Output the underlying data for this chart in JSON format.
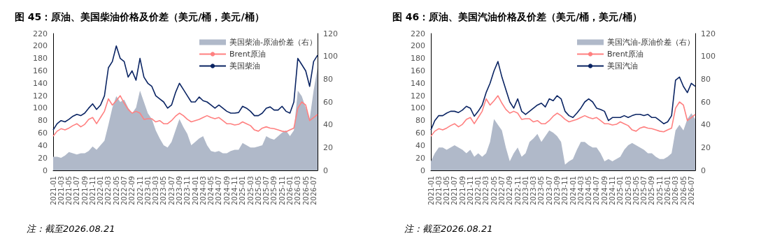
{
  "chart_data": [
    {
      "type": "line",
      "title": "图 45：原油、美国柴油价格及价差（美元/桶，美元/桶）",
      "annotations": [
        "注：截至2026.08.21"
      ],
      "categories": [
        "2021-01",
        null,
        "2021-03",
        null,
        "2021-05",
        null,
        "2021-07",
        null,
        "2021-09",
        null,
        "2021-11",
        null,
        "2022-01",
        null,
        "2022-03",
        null,
        "2022-05",
        null,
        "2022-07",
        null,
        "2022-09",
        null,
        "2022-11",
        null,
        "2023-01",
        null,
        "2023-03",
        null,
        "2023-05",
        null,
        "2023-07",
        null,
        "2023-09",
        null,
        "2023-11",
        null,
        "2024-01",
        null,
        "2024-03",
        null,
        "2024-05",
        null,
        "2024-07",
        null,
        "2024-09",
        null,
        "2024-11",
        null,
        "2025-01",
        null,
        "2025-03",
        null,
        "2025-05",
        null,
        "2025-07",
        null,
        "2025-09",
        null,
        "2025-11",
        null,
        "2026-01",
        null,
        "2026-03",
        null,
        "2026-05",
        null,
        "2026-07",
        null
      ],
      "series": [
        {
          "name": "美国柴油-原油价差（右）",
          "type": "area",
          "axis": "y2",
          "color": "#b0b9c9",
          "values": [
            12,
            12,
            11,
            13,
            16,
            15,
            14,
            15,
            15,
            17,
            21,
            18,
            22,
            26,
            40,
            55,
            65,
            60,
            62,
            55,
            50,
            55,
            70,
            60,
            50,
            45,
            35,
            28,
            22,
            20,
            25,
            35,
            45,
            38,
            32,
            22,
            25,
            28,
            30,
            22,
            17,
            16,
            17,
            15,
            15,
            17,
            18,
            18,
            24,
            22,
            20,
            20,
            21,
            22,
            30,
            28,
            27,
            30,
            33,
            35,
            30,
            35,
            70,
            65,
            55,
            45,
            70,
            90
          ]
        },
        {
          "name": "Brent原油",
          "color": "#ff8080",
          "values": [
            55,
            63,
            67,
            65,
            68,
            72,
            75,
            70,
            74,
            82,
            85,
            75,
            85,
            95,
            115,
            105,
            112,
            120,
            108,
            98,
            92,
            95,
            92,
            82,
            83,
            83,
            78,
            80,
            75,
            75,
            80,
            87,
            92,
            88,
            82,
            78,
            80,
            82,
            85,
            88,
            85,
            83,
            85,
            80,
            75,
            75,
            73,
            74,
            78,
            75,
            72,
            65,
            63,
            68,
            70,
            68,
            67,
            65,
            63,
            62,
            65,
            68,
            100,
            110,
            105,
            80,
            85,
            90
          ]
        },
        {
          "name": "美国柴油",
          "color": "#0a2463",
          "values": [
            65,
            75,
            80,
            78,
            82,
            87,
            90,
            88,
            92,
            100,
            107,
            98,
            105,
            120,
            165,
            175,
            200,
            180,
            175,
            150,
            160,
            145,
            180,
            150,
            140,
            135,
            120,
            115,
            110,
            100,
            105,
            125,
            140,
            130,
            120,
            110,
            110,
            118,
            112,
            110,
            105,
            100,
            105,
            100,
            95,
            92,
            92,
            93,
            103,
            100,
            95,
            88,
            88,
            92,
            100,
            102,
            97,
            97,
            103,
            95,
            92,
            110,
            180,
            170,
            160,
            135,
            175,
            185
          ]
        }
      ],
      "ylim": [
        0,
        220
      ],
      "yticks": [
        0,
        20,
        40,
        60,
        80,
        100,
        120,
        140,
        160,
        180,
        200,
        220
      ],
      "y2lim": [
        0,
        120
      ],
      "y2ticks": [
        0,
        20,
        40,
        60,
        80,
        100,
        120
      ],
      "grid": false,
      "legend": "top right"
    },
    {
      "type": "line",
      "title": "图 46：原油、美国汽油价格及价差（美元/桶，美元/桶）",
      "annotations": [
        "注：截至2026.08.21"
      ],
      "categories": [
        "2021-01",
        null,
        "2021-03",
        null,
        "2021-05",
        null,
        "2021-07",
        null,
        "2021-09",
        null,
        "2021-11",
        null,
        "2022-01",
        null,
        "2022-03",
        null,
        "2022-05",
        null,
        "2022-07",
        null,
        "2022-09",
        null,
        "2022-11",
        null,
        "2023-01",
        null,
        "2023-03",
        null,
        "2023-05",
        null,
        "2023-07",
        null,
        "2023-09",
        null,
        "2023-11",
        null,
        "2024-01",
        null,
        "2024-03",
        null,
        "2024-05",
        null,
        "2024-07",
        null,
        "2024-09",
        null,
        "2024-11",
        null,
        "2025-01",
        null,
        "2025-03",
        null,
        "2025-05",
        null,
        "2025-07",
        null,
        "2025-09",
        null,
        "2025-11",
        null,
        "2026-01",
        null,
        "2026-03",
        null,
        "2026-05",
        null,
        "2026-07",
        null
      ],
      "series": [
        {
          "name": "美国汽油-原油价差（右）",
          "type": "area",
          "axis": "y2",
          "color": "#b0b9c9",
          "values": [
            8,
            15,
            20,
            20,
            18,
            20,
            22,
            20,
            18,
            15,
            18,
            12,
            15,
            12,
            15,
            25,
            45,
            40,
            35,
            20,
            8,
            15,
            20,
            12,
            15,
            25,
            28,
            32,
            25,
            30,
            35,
            33,
            30,
            25,
            5,
            8,
            10,
            18,
            25,
            25,
            22,
            20,
            20,
            15,
            8,
            10,
            8,
            10,
            12,
            18,
            22,
            24,
            22,
            20,
            18,
            15,
            15,
            12,
            10,
            10,
            12,
            15,
            35,
            40,
            35,
            45,
            50,
            45
          ]
        },
        {
          "name": "Brent原油",
          "color": "#ff8080",
          "values": [
            55,
            63,
            67,
            65,
            68,
            72,
            75,
            70,
            74,
            82,
            85,
            75,
            85,
            95,
            115,
            105,
            112,
            120,
            108,
            98,
            92,
            95,
            92,
            82,
            83,
            83,
            78,
            80,
            75,
            75,
            80,
            87,
            92,
            88,
            82,
            78,
            80,
            82,
            85,
            88,
            85,
            83,
            85,
            80,
            75,
            75,
            73,
            74,
            78,
            75,
            72,
            65,
            63,
            68,
            70,
            68,
            67,
            65,
            63,
            62,
            65,
            68,
            100,
            110,
            105,
            80,
            85,
            90
          ]
        },
        {
          "name": "美国汽油",
          "color": "#0a2463",
          "values": [
            65,
            80,
            88,
            88,
            92,
            95,
            95,
            93,
            97,
            103,
            100,
            87,
            95,
            105,
            125,
            140,
            160,
            175,
            150,
            130,
            110,
            100,
            115,
            95,
            90,
            95,
            100,
            105,
            108,
            102,
            115,
            112,
            120,
            115,
            95,
            88,
            85,
            92,
            100,
            110,
            115,
            110,
            100,
            98,
            95,
            80,
            85,
            85,
            85,
            88,
            85,
            88,
            90,
            90,
            88,
            90,
            85,
            85,
            80,
            75,
            78,
            88,
            145,
            150,
            135,
            125,
            140,
            135
          ]
        }
      ],
      "ylim": [
        0,
        220
      ],
      "yticks": [
        0,
        20,
        40,
        60,
        80,
        100,
        120,
        140,
        160,
        180,
        200,
        220
      ],
      "y2lim": [
        0,
        120
      ],
      "y2ticks": [
        0,
        20,
        40,
        60,
        80,
        100,
        120
      ],
      "grid": false,
      "legend": "top right"
    }
  ]
}
